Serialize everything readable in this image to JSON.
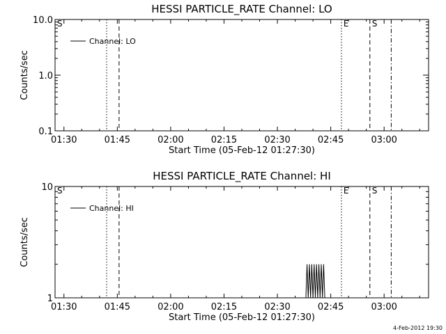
{
  "chart_data": [
    {
      "type": "line",
      "title": "HESSI PARTICLE_RATE Channel: LO",
      "xlabel": "Start Time (05-Feb-12 01:27:30)",
      "ylabel": "Counts/sec",
      "x_ticks": [
        "01:30",
        "01:45",
        "02:00",
        "02:15",
        "02:30",
        "02:45",
        "03:00"
      ],
      "y_ticks": [
        "0.1",
        "1.0",
        "10.0"
      ],
      "yscale": "log",
      "ylim": [
        0.1,
        10
      ],
      "xlim": [
        "01:27:30",
        "03:12:30"
      ],
      "grid": false,
      "legend_position": "top-left",
      "legend": "Channel: LO",
      "series": [
        {
          "name": "Channel: LO",
          "points": []
        }
      ],
      "markers": [
        {
          "label": "S",
          "time": "01:27:30",
          "style": "none"
        },
        {
          "label": "",
          "time": "01:42:00",
          "style": "dotted"
        },
        {
          "label": "",
          "time": "01:45:30",
          "style": "dashed"
        },
        {
          "label": "E",
          "time": "02:48:00",
          "style": "dotted"
        },
        {
          "label": "S",
          "time": "02:56:00",
          "style": "dashed"
        },
        {
          "label": "",
          "time": "03:02:00",
          "style": "dash-dot"
        }
      ]
    },
    {
      "type": "line",
      "title": "HESSI PARTICLE_RATE Channel: HI",
      "xlabel": "Start Time (05-Feb-12 01:27:30)",
      "ylabel": "Counts/sec",
      "x_ticks": [
        "01:30",
        "01:45",
        "02:00",
        "02:15",
        "02:30",
        "02:45",
        "03:00"
      ],
      "y_ticks": [
        "1",
        "10"
      ],
      "yscale": "log",
      "ylim": [
        1,
        10
      ],
      "xlim": [
        "01:27:30",
        "03:12:30"
      ],
      "grid": false,
      "legend_position": "top-left",
      "legend": "Channel: HI",
      "series": [
        {
          "name": "Channel: HI",
          "points": [
            [
              "02:38:00",
              1
            ],
            [
              "02:38:20",
              2
            ],
            [
              "02:38:40",
              1
            ],
            [
              "02:39:00",
              2
            ],
            [
              "02:39:20",
              1
            ],
            [
              "02:39:40",
              2
            ],
            [
              "02:40:00",
              1
            ],
            [
              "02:40:20",
              2
            ],
            [
              "02:40:40",
              1
            ],
            [
              "02:41:00",
              2
            ],
            [
              "02:41:20",
              1
            ],
            [
              "02:41:40",
              2
            ],
            [
              "02:42:00",
              1
            ],
            [
              "02:42:20",
              2
            ],
            [
              "02:42:40",
              1
            ],
            [
              "02:43:00",
              2
            ],
            [
              "02:43:20",
              1
            ]
          ]
        }
      ],
      "markers": [
        {
          "label": "S",
          "time": "01:27:30",
          "style": "none"
        },
        {
          "label": "",
          "time": "01:42:00",
          "style": "dotted"
        },
        {
          "label": "",
          "time": "01:45:30",
          "style": "dashed"
        },
        {
          "label": "E",
          "time": "02:48:00",
          "style": "dotted"
        },
        {
          "label": "S",
          "time": "02:56:00",
          "style": "dashed"
        },
        {
          "label": "",
          "time": "03:02:00",
          "style": "dash-dot"
        }
      ]
    }
  ],
  "footer": {
    "stamp": "4-Feb-2012 19:30"
  }
}
